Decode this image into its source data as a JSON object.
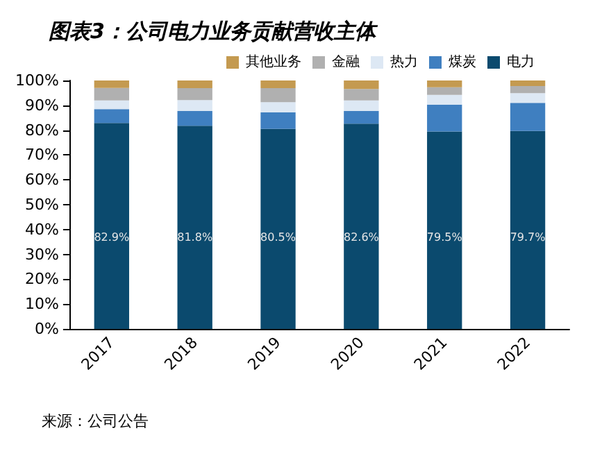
{
  "chart_data": {
    "type": "bar",
    "stacked": true,
    "title": "图表3：公司电力业务贡献营收主体",
    "categories": [
      "2017",
      "2018",
      "2019",
      "2020",
      "2021",
      "2022"
    ],
    "series": [
      {
        "name": "电力",
        "color": "#0b4a6e",
        "values": [
          82.9,
          81.8,
          80.5,
          82.6,
          79.5,
          79.7
        ],
        "value_labels": [
          "82.9%",
          "81.8%",
          "80.5%",
          "82.6%",
          "79.5%",
          "79.7%"
        ]
      },
      {
        "name": "煤炭",
        "color": "#3f7fc0",
        "values": [
          5.6,
          5.9,
          6.7,
          5.1,
          10.8,
          11.3
        ]
      },
      {
        "name": "热力",
        "color": "#dde8f4",
        "values": [
          3.5,
          4.4,
          4.1,
          4.3,
          3.9,
          3.9
        ]
      },
      {
        "name": "金融",
        "color": "#b0b0b0",
        "values": [
          5.0,
          4.8,
          5.6,
          4.6,
          3.1,
          2.9
        ]
      },
      {
        "name": "其他业务",
        "color": "#c49a50",
        "values": [
          3.0,
          3.1,
          3.1,
          3.4,
          2.7,
          2.2
        ]
      }
    ],
    "ylim": [
      0,
      100
    ],
    "yticks": [
      {
        "value": 0,
        "label": "0%"
      },
      {
        "value": 10,
        "label": "10%"
      },
      {
        "value": 20,
        "label": "20%"
      },
      {
        "value": 30,
        "label": "30%"
      },
      {
        "value": 40,
        "label": "40%"
      },
      {
        "value": 50,
        "label": "50%"
      },
      {
        "value": 60,
        "label": "60%"
      },
      {
        "value": 70,
        "label": "70%"
      },
      {
        "value": 80,
        "label": "80%"
      },
      {
        "value": 90,
        "label": "90%"
      },
      {
        "value": 100,
        "label": "100%"
      }
    ],
    "grid": false,
    "legend": "top",
    "annotations": [
      "来源：公司公告"
    ]
  }
}
